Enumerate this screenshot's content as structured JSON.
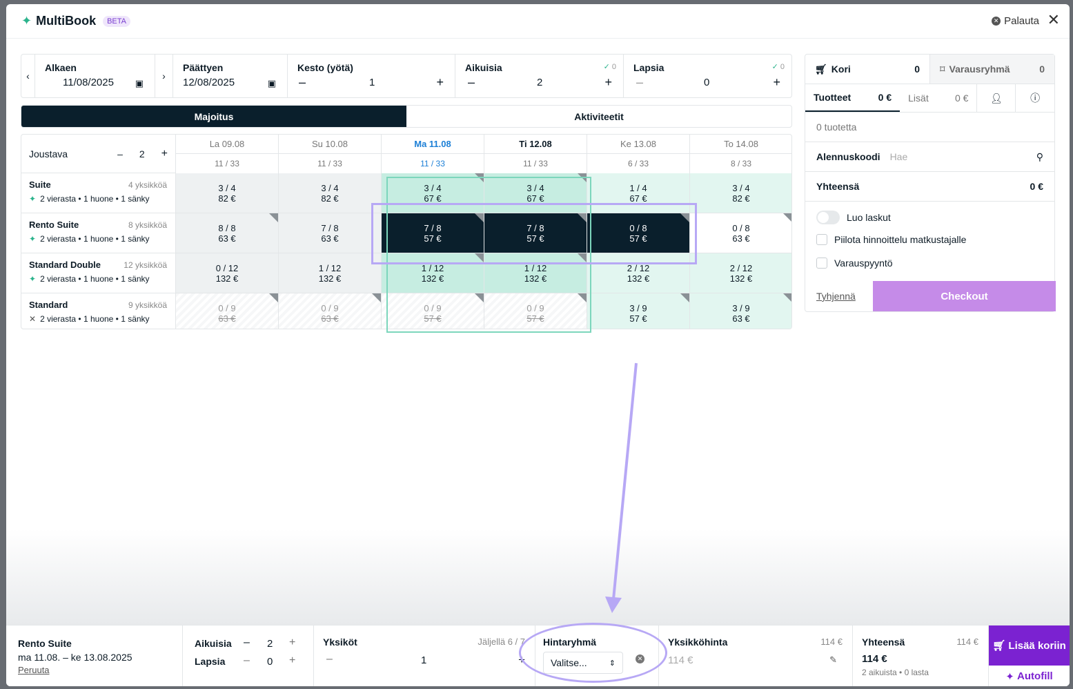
{
  "app": {
    "title": "MultiBook",
    "badge": "BETA",
    "reset": "Palauta"
  },
  "filters": {
    "start": {
      "label": "Alkaen",
      "value": "11/08/2025"
    },
    "end": {
      "label": "Päättyen",
      "value": "12/08/2025"
    },
    "duration": {
      "label": "Kesto (yötä)",
      "value": "1"
    },
    "adults": {
      "label": "Aikuisia",
      "value": "2",
      "check": "0"
    },
    "children": {
      "label": "Lapsia",
      "value": "0",
      "check": "0"
    }
  },
  "tabs": {
    "stay": "Majoitus",
    "activities": "Aktiviteetit"
  },
  "flex": {
    "label": "Joustava",
    "value": "2"
  },
  "dates": [
    {
      "day": "La 09.08",
      "count": "11 / 33"
    },
    {
      "day": "Su 10.08",
      "count": "11 / 33"
    },
    {
      "day": "Ma 11.08",
      "count": "11 / 33"
    },
    {
      "day": "Ti 12.08",
      "count": "11 / 33"
    },
    {
      "day": "Ke 13.08",
      "count": "6 / 33"
    },
    {
      "day": "To 14.08",
      "count": "8 / 33"
    }
  ],
  "rooms": [
    {
      "name": "Suite",
      "units": "4 yksikköä",
      "info": "2 vierasta • 1 huone • 1 sänky",
      "cells": [
        [
          "3 / 4",
          "82 €"
        ],
        [
          "3 / 4",
          "82 €"
        ],
        [
          "3 / 4",
          "67 €"
        ],
        [
          "3 / 4",
          "67 €"
        ],
        [
          "1 / 4",
          "67 €"
        ],
        [
          "3 / 4",
          "82 €"
        ]
      ]
    },
    {
      "name": "Rento Suite",
      "units": "8 yksikköä",
      "info": "2 vierasta • 1 huone • 1 sänky",
      "cells": [
        [
          "8 / 8",
          "63 €"
        ],
        [
          "7 / 8",
          "63 €"
        ],
        [
          "7 / 8",
          "57 €"
        ],
        [
          "7 / 8",
          "57 €"
        ],
        [
          "0 / 8",
          "57 €"
        ],
        [
          "0 / 8",
          "63 €"
        ]
      ]
    },
    {
      "name": "Standard Double",
      "units": "12 yksikköä",
      "info": "2 vierasta • 1 huone • 1 sänky",
      "cells": [
        [
          "0 / 12",
          "132 €"
        ],
        [
          "1 / 12",
          "132 €"
        ],
        [
          "1 / 12",
          "132 €"
        ],
        [
          "1 / 12",
          "132 €"
        ],
        [
          "2 / 12",
          "132 €"
        ],
        [
          "2 / 12",
          "132 €"
        ]
      ]
    },
    {
      "name": "Standard",
      "units": "9 yksikköä",
      "info": "2 vierasta • 1 huone • 1 sänky",
      "cells": [
        [
          "0 / 9",
          "63 €"
        ],
        [
          "0 / 9",
          "63 €"
        ],
        [
          "0 / 9",
          "57 €"
        ],
        [
          "0 / 9",
          "57 €"
        ],
        [
          "3 / 9",
          "57 €"
        ],
        [
          "3 / 9",
          "63 €"
        ]
      ]
    }
  ],
  "cart": {
    "tab_cart": "Kori",
    "cart_count": "0",
    "tab_group": "Varausryhmä",
    "group_count": "0",
    "products": "Tuotteet",
    "products_sum": "0 €",
    "extras": "Lisät",
    "extras_sum": "0 €",
    "empty": "0 tuotetta",
    "discount": "Alennuskoodi",
    "discount_placeholder": "Hae",
    "total_label": "Yhteensä",
    "total": "0 €",
    "invoice": "Luo laskut",
    "hide_pricing": "Piilota hinnoittelu matkustajalle",
    "request": "Varauspyyntö",
    "clear": "Tyhjennä",
    "checkout": "Checkout"
  },
  "bottom": {
    "room": "Rento Suite",
    "dates": "ma 11.08. – ke 13.08.2025",
    "cancel": "Peruuta",
    "adults_label": "Aikuisia",
    "adults": "2",
    "children_label": "Lapsia",
    "children": "0",
    "units_label": "Yksiköt",
    "remaining": "Jäljellä 6 / 7",
    "units": "1",
    "price_group_label": "Hintaryhmä",
    "price_group_placeholder": "Valitse...",
    "unit_price_label": "Yksikköhinta",
    "unit_price_top": "114 €",
    "unit_price": "114 €",
    "total_label": "Yhteensä",
    "total_top": "114 €",
    "total": "114 €",
    "total_sub": "2 aikuista • 0 lasta",
    "add": "Lisää koriin",
    "autofill": "Autofill"
  },
  "colors": {
    "dark": "#0a1f2c",
    "accent": "#7b22d1",
    "green": "#2bb38c",
    "annotation": "#b7a8f5"
  }
}
